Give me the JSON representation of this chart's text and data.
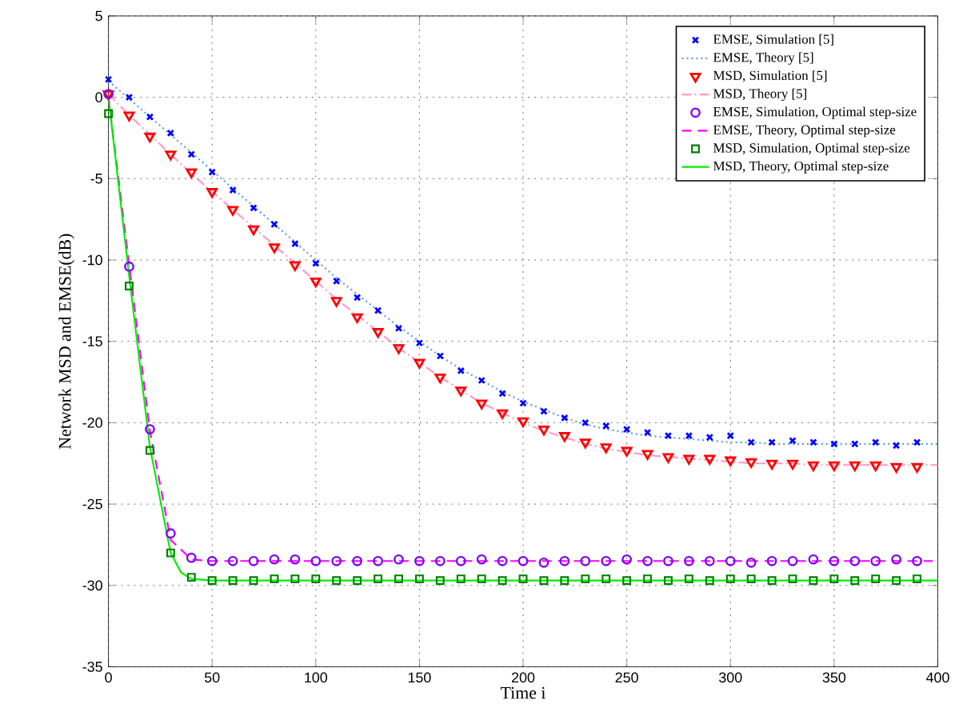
{
  "chart_data": {
    "type": "line",
    "xlabel": "Time i",
    "ylabel": "Network MSD and EMSE(dB)",
    "xlim": [
      0,
      400
    ],
    "ylim": [
      -35,
      5
    ],
    "xticks": [
      0,
      50,
      100,
      150,
      200,
      250,
      300,
      350,
      400
    ],
    "yticks": [
      -35,
      -30,
      -25,
      -20,
      -15,
      -10,
      -5,
      0,
      5
    ],
    "grid": true,
    "legend": "top right",
    "series": [
      {
        "name": "EMSE, Simulation [5]",
        "type": "scatter",
        "marker": "cross",
        "color": "#0000ff",
        "x": [
          0,
          10,
          20,
          30,
          40,
          50,
          60,
          70,
          80,
          90,
          100,
          110,
          120,
          130,
          140,
          150,
          160,
          170,
          180,
          190,
          200,
          210,
          220,
          230,
          240,
          250,
          260,
          270,
          280,
          290,
          300,
          310,
          320,
          330,
          340,
          350,
          360,
          370,
          380,
          390
        ],
        "values": [
          1.1,
          0.0,
          -1.2,
          -2.2,
          -3.5,
          -4.6,
          -5.7,
          -6.8,
          -7.8,
          -9.0,
          -10.2,
          -11.3,
          -12.3,
          -13.1,
          -14.2,
          -15.1,
          -15.9,
          -16.8,
          -17.4,
          -18.2,
          -18.8,
          -19.3,
          -19.7,
          -20.0,
          -20.2,
          -20.4,
          -20.6,
          -20.8,
          -20.8,
          -20.9,
          -20.8,
          -21.2,
          -21.2,
          -21.1,
          -21.2,
          -21.3,
          -21.3,
          -21.2,
          -21.4,
          -21.2
        ]
      },
      {
        "name": "EMSE, Theory [5]",
        "line_style": "dotted",
        "marker": "none",
        "color": "#5599ff",
        "x": [
          0,
          10,
          20,
          30,
          40,
          50,
          60,
          70,
          80,
          90,
          100,
          110,
          120,
          130,
          140,
          150,
          160,
          170,
          180,
          190,
          200,
          210,
          220,
          230,
          240,
          250,
          260,
          270,
          280,
          290,
          300,
          310,
          320,
          330,
          340,
          350,
          360,
          370,
          380,
          390,
          400
        ],
        "values": [
          1.0,
          -0.1,
          -1.2,
          -2.3,
          -3.4,
          -4.5,
          -5.6,
          -6.7,
          -7.8,
          -8.9,
          -10.0,
          -11.1,
          -12.1,
          -13.1,
          -14.1,
          -15.0,
          -15.9,
          -16.7,
          -17.4,
          -18.1,
          -18.7,
          -19.2,
          -19.7,
          -20.1,
          -20.4,
          -20.6,
          -20.8,
          -20.9,
          -21.0,
          -21.1,
          -21.2,
          -21.2,
          -21.3,
          -21.3,
          -21.3,
          -21.3,
          -21.3,
          -21.3,
          -21.3,
          -21.3,
          -21.3
        ]
      },
      {
        "name": "MSD, Simulation [5]",
        "type": "scatter",
        "marker": "triangle",
        "color": "#ff0000",
        "x": [
          0,
          10,
          20,
          30,
          40,
          50,
          60,
          70,
          80,
          90,
          100,
          110,
          120,
          130,
          140,
          150,
          160,
          170,
          180,
          190,
          200,
          210,
          220,
          230,
          240,
          250,
          260,
          270,
          280,
          290,
          300,
          310,
          320,
          330,
          340,
          350,
          360,
          370,
          380,
          390
        ],
        "values": [
          0.2,
          -1.1,
          -2.4,
          -3.5,
          -4.6,
          -5.8,
          -6.9,
          -8.1,
          -9.2,
          -10.3,
          -11.3,
          -12.5,
          -13.5,
          -14.4,
          -15.4,
          -16.3,
          -17.2,
          -18.0,
          -18.8,
          -19.4,
          -19.9,
          -20.4,
          -20.8,
          -21.2,
          -21.5,
          -21.7,
          -21.9,
          -22.1,
          -22.2,
          -22.2,
          -22.3,
          -22.4,
          -22.5,
          -22.5,
          -22.6,
          -22.6,
          -22.6,
          -22.6,
          -22.7,
          -22.7
        ]
      },
      {
        "name": "MSD, Theory [5]",
        "line_style": "dashdot",
        "marker": "none",
        "color": "#ff99cc",
        "x": [
          0,
          10,
          20,
          30,
          40,
          50,
          60,
          70,
          80,
          90,
          100,
          110,
          120,
          130,
          140,
          150,
          160,
          170,
          180,
          190,
          200,
          210,
          220,
          230,
          240,
          250,
          260,
          270,
          280,
          290,
          300,
          310,
          320,
          330,
          340,
          350,
          360,
          370,
          380,
          390,
          400
        ],
        "values": [
          0.2,
          -1.1,
          -2.3,
          -3.5,
          -4.7,
          -5.8,
          -6.9,
          -8.0,
          -9.1,
          -10.2,
          -11.3,
          -12.4,
          -13.4,
          -14.4,
          -15.4,
          -16.3,
          -17.2,
          -18.0,
          -18.8,
          -19.4,
          -20.0,
          -20.5,
          -20.9,
          -21.3,
          -21.6,
          -21.8,
          -22.0,
          -22.1,
          -22.2,
          -22.3,
          -22.4,
          -22.5,
          -22.5,
          -22.5,
          -22.6,
          -22.6,
          -22.6,
          -22.6,
          -22.6,
          -22.6,
          -22.6
        ]
      },
      {
        "name": "EMSE, Simulation, Optimal step-size",
        "type": "scatter",
        "marker": "circle",
        "color": "#8000ff",
        "x": [
          0,
          10,
          20,
          30,
          40,
          50,
          60,
          70,
          80,
          90,
          100,
          110,
          120,
          130,
          140,
          150,
          160,
          170,
          180,
          190,
          200,
          210,
          220,
          230,
          240,
          250,
          260,
          270,
          280,
          290,
          300,
          310,
          320,
          330,
          340,
          350,
          360,
          370,
          380,
          390
        ],
        "values": [
          0.2,
          -10.4,
          -20.4,
          -26.8,
          -28.3,
          -28.5,
          -28.5,
          -28.5,
          -28.4,
          -28.4,
          -28.5,
          -28.5,
          -28.5,
          -28.5,
          -28.4,
          -28.5,
          -28.5,
          -28.5,
          -28.4,
          -28.5,
          -28.5,
          -28.6,
          -28.5,
          -28.5,
          -28.5,
          -28.4,
          -28.5,
          -28.5,
          -28.5,
          -28.5,
          -28.5,
          -28.6,
          -28.5,
          -28.5,
          -28.4,
          -28.5,
          -28.5,
          -28.5,
          -28.4,
          -28.5
        ]
      },
      {
        "name": "EMSE, Theory, Optimal step-size",
        "line_style": "dashed",
        "marker": "none",
        "color": "#ff00ff",
        "x": [
          0,
          10,
          20,
          30,
          40,
          50,
          100,
          150,
          200,
          250,
          300,
          350,
          400
        ],
        "values": [
          0.0,
          -10.3,
          -20.5,
          -27.2,
          -28.4,
          -28.5,
          -28.5,
          -28.5,
          -28.5,
          -28.5,
          -28.5,
          -28.5,
          -28.5
        ]
      },
      {
        "name": "MSD, Simulation, Optimal step-size",
        "type": "scatter",
        "marker": "square",
        "color": "#008000",
        "x": [
          0,
          10,
          20,
          30,
          40,
          50,
          60,
          70,
          80,
          90,
          100,
          110,
          120,
          130,
          140,
          150,
          160,
          170,
          180,
          190,
          200,
          210,
          220,
          230,
          240,
          250,
          260,
          270,
          280,
          290,
          300,
          310,
          320,
          330,
          340,
          350,
          360,
          370,
          380,
          390
        ],
        "values": [
          -1.0,
          -11.6,
          -21.7,
          -28.0,
          -29.5,
          -29.7,
          -29.7,
          -29.7,
          -29.6,
          -29.6,
          -29.6,
          -29.7,
          -29.7,
          -29.6,
          -29.6,
          -29.6,
          -29.7,
          -29.6,
          -29.6,
          -29.7,
          -29.6,
          -29.7,
          -29.7,
          -29.6,
          -29.6,
          -29.7,
          -29.6,
          -29.7,
          -29.6,
          -29.7,
          -29.6,
          -29.6,
          -29.7,
          -29.6,
          -29.7,
          -29.6,
          -29.7,
          -29.6,
          -29.7,
          -29.6
        ]
      },
      {
        "name": "MSD, Theory, Optimal step-size",
        "line_style": "solid",
        "marker": "none",
        "color": "#00ee00",
        "x": [
          0,
          10,
          20,
          30,
          35,
          40,
          50,
          100,
          150,
          200,
          250,
          300,
          350,
          400
        ],
        "values": [
          0.0,
          -11.0,
          -21.5,
          -28.0,
          -29.2,
          -29.6,
          -29.7,
          -29.7,
          -29.7,
          -29.7,
          -29.7,
          -29.7,
          -29.7,
          -29.7
        ]
      }
    ]
  }
}
